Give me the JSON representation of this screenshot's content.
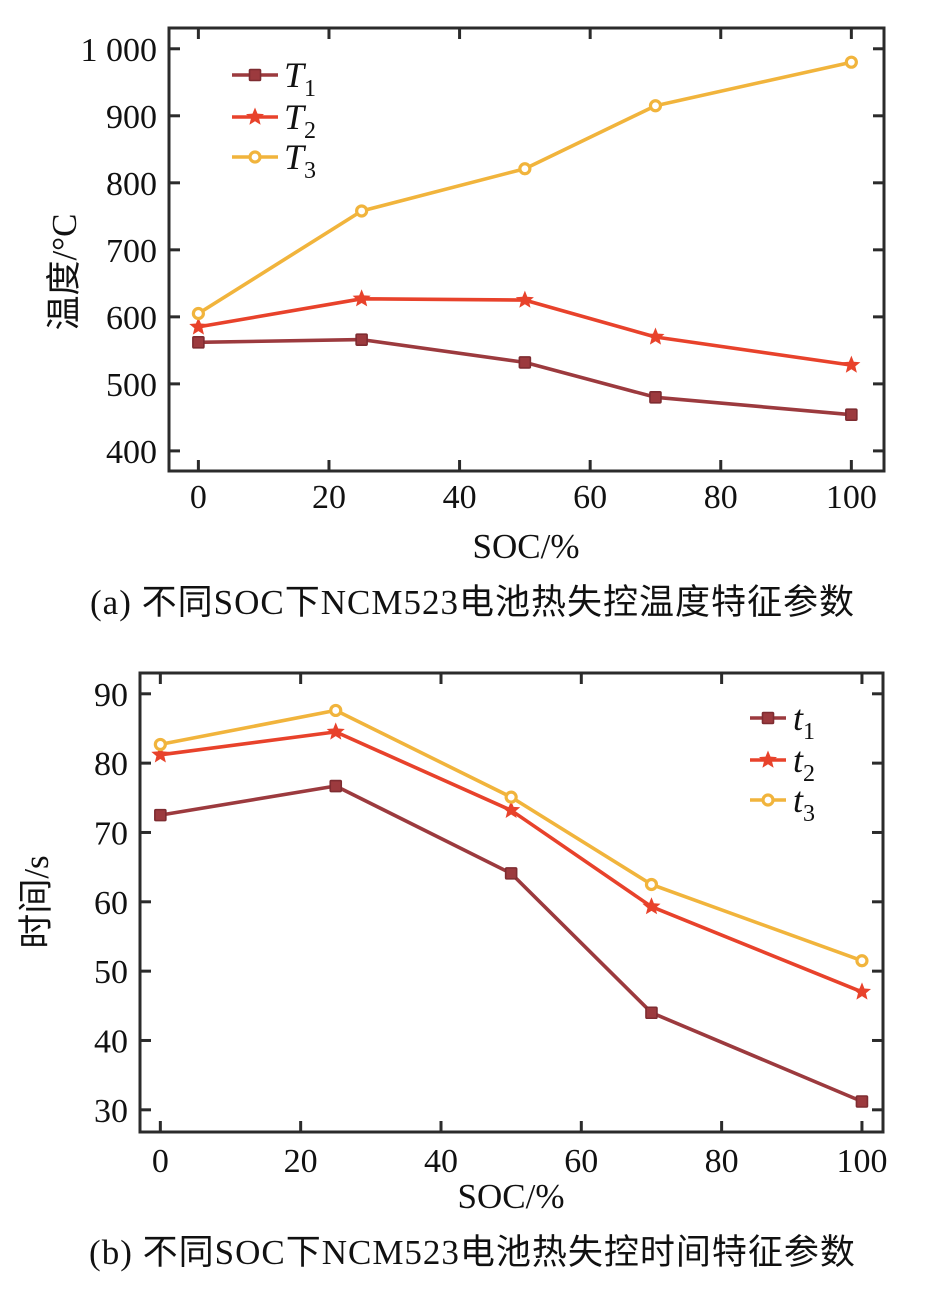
{
  "page": {
    "background": "#ffffff",
    "text_color": "#111111",
    "axis_color": "#2b2b2b"
  },
  "figure": {
    "caption_a": "(a) 不同SOC下NCM523电池热失控温度特征参数",
    "caption_b": "(b) 不同SOC下NCM523电池热失控时间特征参数"
  },
  "chart_data": [
    {
      "id": "chart-a",
      "type": "line",
      "title": "",
      "xlabel": "SOC/%",
      "ylabel": "温度/°C",
      "x": [
        0,
        25,
        50,
        70,
        100
      ],
      "series": [
        {
          "name": "T1",
          "legend_main": "T",
          "legend_sub": "1",
          "marker": "square",
          "color": "#9c3a3e",
          "edge": "#7e2c31",
          "values": [
            562,
            566,
            532,
            480,
            454
          ]
        },
        {
          "name": "T2",
          "legend_main": "T",
          "legend_sub": "2",
          "marker": "star",
          "color": "#e8422b",
          "edge": "#e8422b",
          "values": [
            585,
            627,
            625,
            570,
            528
          ]
        },
        {
          "name": "T3",
          "legend_main": "T",
          "legend_sub": "3",
          "marker": "circle",
          "color": "#f1b43c",
          "edge": "#f1b43c",
          "values": [
            605,
            758,
            821,
            915,
            980
          ]
        }
      ],
      "xlim": [
        -4.5,
        105
      ],
      "ylim": [
        370,
        1031
      ],
      "xticks": [
        {
          "v": 0,
          "label": "0"
        },
        {
          "v": 20,
          "label": "20"
        },
        {
          "v": 40,
          "label": "40"
        },
        {
          "v": 60,
          "label": "60"
        },
        {
          "v": 80,
          "label": "80"
        },
        {
          "v": 100,
          "label": "100"
        }
      ],
      "yticks": [
        {
          "v": 400,
          "label": "400"
        },
        {
          "v": 500,
          "label": "500"
        },
        {
          "v": 600,
          "label": "600"
        },
        {
          "v": 700,
          "label": "700"
        },
        {
          "v": 800,
          "label": "800"
        },
        {
          "v": 900,
          "label": "900"
        },
        {
          "v": 1000,
          "label": "1 000"
        }
      ],
      "legend_position": "upper-left",
      "grid": false
    },
    {
      "id": "chart-b",
      "type": "line",
      "title": "",
      "xlabel": "SOC/%",
      "ylabel": "时间/s",
      "x": [
        0,
        25,
        50,
        70,
        100
      ],
      "series": [
        {
          "name": "t1",
          "legend_main": "t",
          "legend_sub": "1",
          "marker": "square",
          "color": "#9c3a3e",
          "edge": "#7e2c31",
          "values": [
            72.5,
            76.7,
            64.1,
            44.0,
            31.2
          ]
        },
        {
          "name": "t2",
          "legend_main": "t",
          "legend_sub": "2",
          "marker": "star",
          "color": "#e8422b",
          "edge": "#e8422b",
          "values": [
            81.2,
            84.5,
            73.2,
            59.3,
            47.0
          ]
        },
        {
          "name": "t3",
          "legend_main": "t",
          "legend_sub": "3",
          "marker": "circle",
          "color": "#f1b43c",
          "edge": "#f1b43c",
          "values": [
            82.7,
            87.6,
            75.1,
            62.5,
            51.5
          ]
        }
      ],
      "xlim": [
        -2.9,
        103
      ],
      "ylim": [
        26.8,
        93
      ],
      "xticks": [
        {
          "v": 0,
          "label": "0"
        },
        {
          "v": 20,
          "label": "20"
        },
        {
          "v": 40,
          "label": "40"
        },
        {
          "v": 60,
          "label": "60"
        },
        {
          "v": 80,
          "label": "80"
        },
        {
          "v": 100,
          "label": "100"
        }
      ],
      "yticks": [
        {
          "v": 30,
          "label": "30"
        },
        {
          "v": 40,
          "label": "40"
        },
        {
          "v": 50,
          "label": "50"
        },
        {
          "v": 60,
          "label": "60"
        },
        {
          "v": 70,
          "label": "70"
        },
        {
          "v": 80,
          "label": "80"
        },
        {
          "v": 90,
          "label": "90"
        }
      ],
      "legend_position": "upper-right",
      "grid": false
    }
  ]
}
